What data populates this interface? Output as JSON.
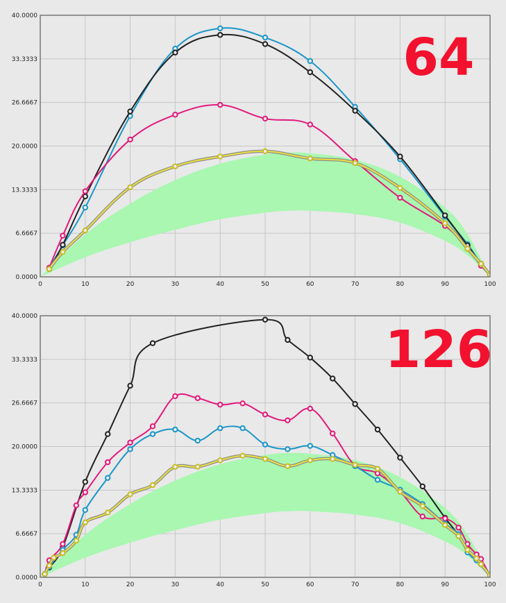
{
  "chart_data": [
    {
      "type": "line",
      "title": "",
      "annotation": "64",
      "xlabel": "",
      "ylabel": "",
      "xlim": [
        0,
        100
      ],
      "ylim": [
        0,
        40
      ],
      "xticks": [
        "0",
        "10",
        "20",
        "30",
        "40",
        "50",
        "60",
        "70",
        "80",
        "90",
        "100"
      ],
      "yticks": [
        "0.0000",
        "6.6667",
        "13.3333",
        "20.0000",
        "26.6667",
        "33.3333",
        "40.0000"
      ],
      "grid": true,
      "band": {
        "color": "#a9f7b1",
        "x": [
          0,
          10,
          20,
          30,
          40,
          50,
          55,
          60,
          70,
          80,
          90,
          95,
          100
        ],
        "lower": [
          0,
          3,
          5.3,
          7.2,
          8.8,
          9.8,
          10.1,
          10.1,
          9.6,
          8.3,
          5.5,
          3.3,
          0
        ],
        "upper": [
          0,
          6.5,
          11.2,
          14.8,
          17.3,
          18.7,
          19.0,
          18.9,
          17.9,
          15.3,
          10.6,
          6.5,
          0
        ]
      },
      "series": [
        {
          "color": "#1a96c8",
          "x": [
            2,
            5,
            10,
            20,
            30,
            40,
            50,
            60,
            70,
            80,
            90,
            95,
            98,
            100
          ],
          "y": [
            1.4,
            4.8,
            10.6,
            24.6,
            34.9,
            38.0,
            36.6,
            33.0,
            26.0,
            18.0,
            9.2,
            5.0,
            2.0,
            0.3
          ]
        },
        {
          "color": "#222222",
          "x": [
            2,
            5,
            10,
            20,
            30,
            40,
            50,
            60,
            70,
            80,
            90,
            95,
            98,
            100
          ],
          "y": [
            1.2,
            4.9,
            12.3,
            25.3,
            34.3,
            37.0,
            35.6,
            31.3,
            25.4,
            18.4,
            9.4,
            4.8,
            2.0,
            0.3
          ]
        },
        {
          "color": "#e2187a",
          "x": [
            2,
            5,
            10,
            20,
            30,
            40,
            50,
            60,
            70,
            80,
            90,
            95,
            98,
            100
          ],
          "y": [
            1.4,
            6.3,
            13.1,
            21.0,
            24.8,
            26.3,
            24.2,
            23.3,
            17.7,
            12.1,
            7.8,
            4.3,
            1.7,
            0.3
          ]
        },
        {
          "color": "#ece23c",
          "x": [
            2,
            5,
            10,
            20,
            30,
            40,
            50,
            60,
            70,
            80,
            90,
            95,
            98,
            100
          ],
          "y": [
            1.2,
            3.8,
            7.1,
            13.7,
            16.9,
            18.4,
            19.2,
            18.1,
            17.4,
            13.6,
            8.2,
            4.3,
            2.0,
            0.3
          ]
        }
      ]
    },
    {
      "type": "line",
      "title": "",
      "annotation": "126",
      "xlabel": "",
      "ylabel": "",
      "xlim": [
        0,
        100
      ],
      "ylim": [
        0,
        40
      ],
      "xticks": [
        "0",
        "10",
        "20",
        "30",
        "40",
        "50",
        "60",
        "70",
        "80",
        "90",
        "100"
      ],
      "yticks": [
        "0.0000",
        "6.6667",
        "13.3333",
        "20.0000",
        "26.6667",
        "33.3333",
        "40.0000"
      ],
      "grid": true,
      "band": {
        "color": "#a9f7b1",
        "x": [
          0,
          10,
          20,
          30,
          40,
          50,
          55,
          60,
          70,
          80,
          90,
          95,
          100
        ],
        "lower": [
          0,
          3,
          5.3,
          7.2,
          8.8,
          9.8,
          10.1,
          10.1,
          9.6,
          8.3,
          5.5,
          3.3,
          0
        ],
        "upper": [
          0,
          6.5,
          11.2,
          14.8,
          17.3,
          18.7,
          19.0,
          18.9,
          17.9,
          15.3,
          10.6,
          6.5,
          0
        ]
      },
      "series": [
        {
          "color": "#222222",
          "x": [
            1,
            2,
            5,
            10,
            15,
            20,
            25,
            50,
            55,
            60,
            65,
            70,
            75,
            80,
            85,
            90,
            93,
            95,
            97,
            98,
            100
          ],
          "y": [
            0.5,
            1.5,
            4.6,
            14.6,
            21.9,
            29.3,
            35.8,
            39.4,
            36.3,
            33.6,
            30.4,
            26.5,
            22.6,
            18.3,
            13.9,
            9.1,
            6.5,
            4.4,
            2.8,
            2.0,
            0.3
          ]
        },
        {
          "color": "#e2187a",
          "x": [
            1,
            2,
            5,
            8,
            10,
            15,
            20,
            25,
            30,
            35,
            40,
            45,
            50,
            55,
            60,
            65,
            70,
            75,
            80,
            85,
            90,
            93,
            95,
            97,
            98,
            100
          ],
          "y": [
            0.5,
            2.6,
            5.1,
            11.0,
            13.0,
            17.6,
            20.6,
            23.1,
            27.7,
            27.4,
            26.4,
            26.6,
            24.9,
            24.0,
            25.8,
            22.0,
            17.1,
            15.9,
            13.1,
            9.3,
            9.0,
            7.6,
            5.1,
            3.5,
            2.8,
            0.3
          ]
        },
        {
          "color": "#1a96c8",
          "x": [
            1,
            2,
            5,
            8,
            10,
            15,
            20,
            25,
            30,
            35,
            40,
            45,
            50,
            55,
            60,
            65,
            70,
            75,
            80,
            85,
            90,
            93,
            95,
            97,
            98,
            100
          ],
          "y": [
            0.5,
            1.6,
            4.2,
            6.5,
            10.3,
            15.2,
            19.6,
            21.9,
            22.6,
            20.9,
            22.8,
            22.8,
            20.3,
            19.6,
            20.1,
            18.7,
            17.0,
            14.9,
            13.4,
            11.2,
            8.2,
            6.6,
            3.8,
            2.6,
            2.0,
            0.3
          ]
        },
        {
          "color": "#ece23c",
          "x": [
            1,
            2,
            3,
            5,
            8,
            10,
            15,
            20,
            25,
            30,
            35,
            40,
            45,
            50,
            55,
            60,
            65,
            70,
            75,
            80,
            85,
            90,
            93,
            95,
            97,
            98,
            100
          ],
          "y": [
            0.5,
            1.8,
            3.0,
            3.7,
            5.6,
            8.4,
            9.9,
            12.7,
            14.1,
            16.9,
            16.9,
            17.9,
            18.6,
            18.1,
            17.0,
            17.9,
            18.1,
            17.2,
            16.6,
            13.1,
            10.9,
            8.0,
            6.3,
            4.2,
            2.9,
            2.0,
            0.3
          ]
        }
      ]
    }
  ]
}
